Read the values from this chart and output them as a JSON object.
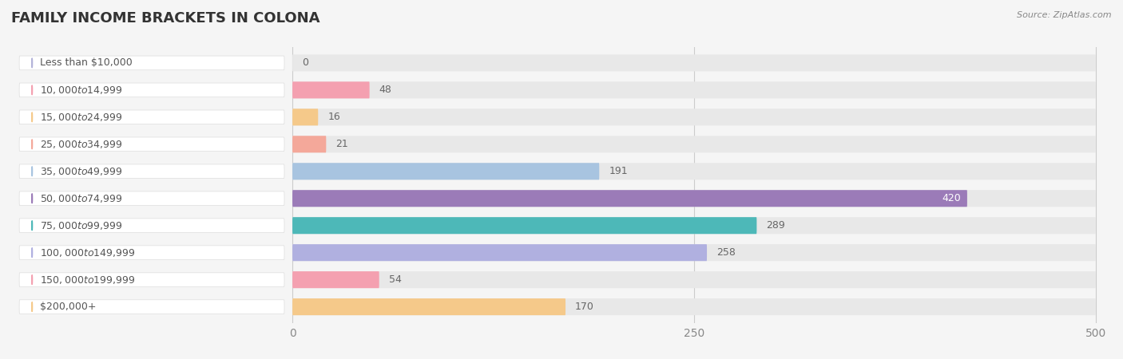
{
  "title": "FAMILY INCOME BRACKETS IN COLONA",
  "source": "Source: ZipAtlas.com",
  "categories": [
    "Less than $10,000",
    "$10,000 to $14,999",
    "$15,000 to $24,999",
    "$25,000 to $34,999",
    "$35,000 to $49,999",
    "$50,000 to $74,999",
    "$75,000 to $99,999",
    "$100,000 to $149,999",
    "$150,000 to $199,999",
    "$200,000+"
  ],
  "values": [
    0,
    48,
    16,
    21,
    191,
    420,
    289,
    258,
    54,
    170
  ],
  "bar_colors": [
    "#b3b3d9",
    "#f4a0b0",
    "#f5c98a",
    "#f4a89a",
    "#a8c4e0",
    "#9b7bb8",
    "#4db8b8",
    "#b0b0e0",
    "#f4a0b0",
    "#f5c98a"
  ],
  "background_color": "#f5f5f5",
  "bar_bg_color": "#e8e8e8",
  "title_fontsize": 13,
  "tick_fontsize": 10,
  "value_fontsize": 9,
  "label_fontsize": 9,
  "xlim": [
    0,
    500
  ],
  "xticks": [
    0,
    250,
    500
  ],
  "value_inside_threshold": 400
}
